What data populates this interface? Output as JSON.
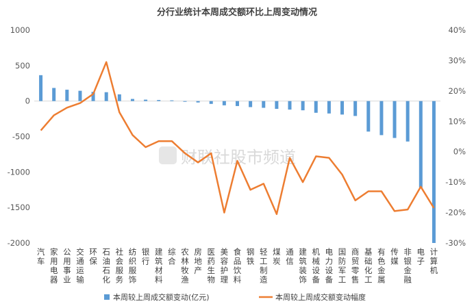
{
  "chart_data": {
    "type": "bar+line",
    "title": "分行业统计本周成交额环比上周变动情况",
    "categories": [
      "汽车",
      "家用电器",
      "公用事业",
      "交通运输",
      "环保",
      "石油石化",
      "社会服务",
      "纺织服饰",
      "银行",
      "建筑材料",
      "综合",
      "农林牧渔",
      "房地产",
      "医药生物",
      "美容护理",
      "食品饮料",
      "钢铁",
      "轻工制造",
      "煤炭",
      "通信",
      "建筑装饰",
      "机械设备",
      "电力设备",
      "国防军工",
      "商贸零售",
      "基础化工",
      "有色金属",
      "传媒",
      "非银金融",
      "电子",
      "计算机"
    ],
    "series": [
      {
        "name": "本周较上周成交额变动(亿元)",
        "type": "bar",
        "axis": "left",
        "color": "#5b9bd5",
        "values": [
          365,
          185,
          160,
          145,
          130,
          125,
          95,
          30,
          20,
          15,
          10,
          -10,
          -20,
          -40,
          -60,
          -70,
          -85,
          -95,
          -110,
          -120,
          -130,
          -165,
          -175,
          -190,
          -210,
          -430,
          -480,
          -520,
          -570,
          -1220,
          -2000
        ]
      },
      {
        "name": "本周较上周成交额变动幅度",
        "type": "line",
        "axis": "right",
        "color": "#ed7d31",
        "values": [
          7,
          12,
          14.5,
          16,
          19,
          29.5,
          13,
          5.5,
          1.5,
          3.5,
          3.5,
          -0.5,
          -3.5,
          -0.5,
          -20,
          -3,
          -12.5,
          -10.5,
          -20.5,
          -2,
          -10,
          -1.5,
          -2,
          -7.5,
          -16,
          -13,
          -13,
          -19.5,
          -19,
          -11.5,
          -18.5
        ]
      }
    ],
    "y_left": {
      "min": -2000,
      "max": 1000,
      "ticks": [
        "1000",
        "500",
        "0",
        "-500",
        "-1000",
        "-1500",
        "-2000"
      ]
    },
    "y_right": {
      "min": -30,
      "max": 40,
      "ticks": [
        "40%",
        "30%",
        "20%",
        "10%",
        "0%",
        "-10%",
        "-20%",
        "-30%"
      ]
    },
    "legend": [
      "本周较上周成交额变动(亿元)",
      "本周较上周成交额变动幅度"
    ],
    "legend_position": "bottom",
    "watermark": "财联社股市频道"
  }
}
